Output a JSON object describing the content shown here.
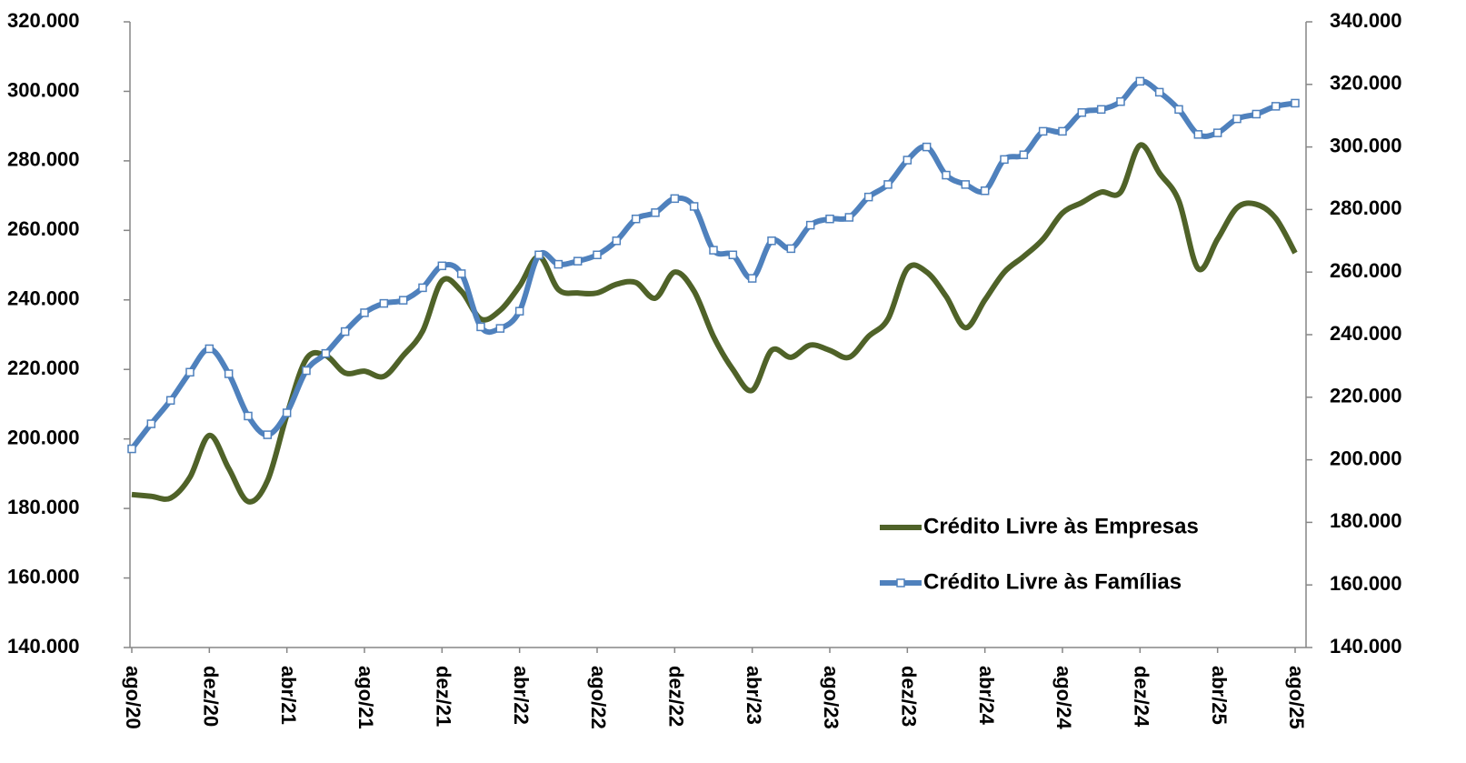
{
  "chart_data": {
    "type": "line",
    "categories": [
      "ago/20",
      null,
      null,
      null,
      "dez/20",
      null,
      null,
      null,
      "abr/21",
      null,
      null,
      null,
      "ago/21",
      null,
      null,
      null,
      "dez/21",
      null,
      null,
      null,
      "abr/22",
      null,
      null,
      null,
      "ago/22",
      null,
      null,
      null,
      "dez/22",
      null,
      null,
      null,
      "abr/23",
      null,
      null,
      null,
      "ago/23",
      null,
      null,
      null,
      "dez/23",
      null,
      null,
      null,
      "abr/24",
      null,
      null,
      null,
      "ago/24",
      null,
      null,
      null,
      "dez/24",
      null,
      null,
      null,
      "abr/25",
      null,
      null,
      null,
      "ago/25"
    ],
    "series": [
      {
        "name": "Crédito Livre às Empresas",
        "color": "#4f6228",
        "marker": false,
        "axis": "y",
        "values": [
          184000,
          183500,
          183000,
          189000,
          201000,
          191500,
          182000,
          188000,
          207000,
          223000,
          224000,
          219000,
          219500,
          218000,
          224000,
          231000,
          245500,
          242500,
          234500,
          237000,
          244000,
          252500,
          243000,
          242000,
          242000,
          244500,
          245000,
          240500,
          248000,
          242500,
          229500,
          220000,
          214000,
          225500,
          223500,
          227000,
          225500,
          223500,
          229500,
          234500,
          249000,
          248000,
          241000,
          232000,
          240000,
          248000,
          252500,
          257500,
          265000,
          268000,
          271000,
          271000,
          284500,
          276500,
          268500,
          249000,
          257500,
          266500,
          267500,
          263500,
          253500
        ]
      },
      {
        "name": "Crédito Livre às Famílias",
        "color": "#4f81bd",
        "marker": true,
        "axis": "y2",
        "values": [
          203500,
          211500,
          219000,
          228000,
          235500,
          227500,
          214000,
          208000,
          215000,
          228500,
          234000,
          241000,
          247000,
          250000,
          251000,
          255000,
          262000,
          259500,
          242500,
          242000,
          247500,
          265500,
          262500,
          263500,
          265500,
          270000,
          277000,
          279000,
          283500,
          281000,
          267000,
          265500,
          258000,
          270000,
          267500,
          275000,
          277000,
          277500,
          284000,
          288000,
          295800,
          300000,
          291000,
          288000,
          286000,
          296000,
          297500,
          305000,
          305000,
          311000,
          312000,
          314500,
          321000,
          317500,
          312000,
          304000,
          304500,
          309000,
          310500,
          313000,
          314000
        ]
      }
    ],
    "ylim": [
      140000,
      320000
    ],
    "yticks": [
      {
        "value": 140000,
        "label": "140.000"
      },
      {
        "value": 160000,
        "label": "160.000"
      },
      {
        "value": 180000,
        "label": "180.000"
      },
      {
        "value": 200000,
        "label": "200.000"
      },
      {
        "value": 220000,
        "label": "220.000"
      },
      {
        "value": 240000,
        "label": "240.000"
      },
      {
        "value": 260000,
        "label": "260.000"
      },
      {
        "value": 280000,
        "label": "280.000"
      },
      {
        "value": 300000,
        "label": "300.000"
      },
      {
        "value": 320000,
        "label": "320.000"
      }
    ],
    "y2lim": [
      140000,
      340000
    ],
    "y2ticks": [
      {
        "value": 140000,
        "label": "140.000"
      },
      {
        "value": 160000,
        "label": "160.000"
      },
      {
        "value": 180000,
        "label": "180.000"
      },
      {
        "value": 200000,
        "label": "200.000"
      },
      {
        "value": 220000,
        "label": "220.000"
      },
      {
        "value": 240000,
        "label": "240.000"
      },
      {
        "value": 260000,
        "label": "260.000"
      },
      {
        "value": 280000,
        "label": "280.000"
      },
      {
        "value": 300000,
        "label": "300.000"
      },
      {
        "value": 320000,
        "label": "320.000"
      },
      {
        "value": 340000,
        "label": "340.000"
      }
    ],
    "grid": false,
    "legend": "lower right"
  }
}
